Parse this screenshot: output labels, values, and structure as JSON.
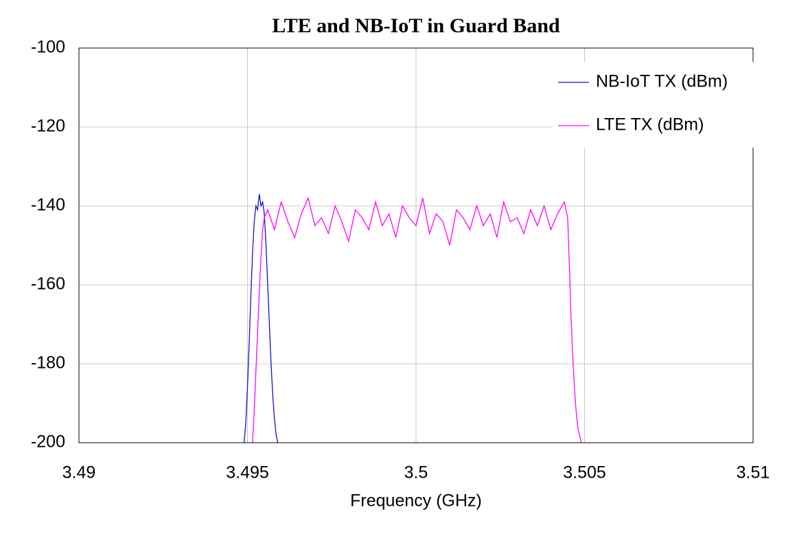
{
  "chart_data": {
    "type": "line",
    "title": "LTE and NB-IoT in Guard Band",
    "x_label": "Frequency (GHz)",
    "xlim": [
      3.49,
      3.51
    ],
    "xticks": [
      3.49,
      3.495,
      3.5,
      3.505,
      3.51
    ],
    "ylim": [
      -200,
      -100
    ],
    "yticks": [
      -100,
      -120,
      -140,
      -160,
      -180,
      -200
    ],
    "grid": true,
    "legend": "upper right",
    "series": [
      {
        "name": "NB-IoT TX (dBm)",
        "color": "#1010d0",
        "x": [
          3.4949,
          3.49495,
          3.495,
          3.49505,
          3.4951,
          3.49515,
          3.4952,
          3.49525,
          3.4953,
          3.49535,
          3.4954,
          3.49545,
          3.4955,
          3.49555,
          3.4956,
          3.49565,
          3.4957,
          3.49575,
          3.4958,
          3.49585,
          3.4959
        ],
        "values": [
          -200,
          -195,
          -186,
          -175,
          -163,
          -152,
          -144,
          -140,
          -141,
          -137,
          -140,
          -139,
          -142,
          -150,
          -160,
          -170,
          -180,
          -188,
          -194,
          -198,
          -200
        ]
      },
      {
        "name": "LTE TX (dBm)",
        "color": "#ff00ff",
        "x": [
          3.49515,
          3.4952,
          3.49525,
          3.4953,
          3.49535,
          3.4954,
          3.49545,
          3.4955,
          3.4956,
          3.4958,
          3.496,
          3.4962,
          3.4964,
          3.4966,
          3.4968,
          3.497,
          3.4972,
          3.4974,
          3.4976,
          3.4978,
          3.498,
          3.4982,
          3.4984,
          3.4986,
          3.4988,
          3.499,
          3.4992,
          3.4994,
          3.4996,
          3.4998,
          3.5,
          3.5002,
          3.5004,
          3.5006,
          3.5008,
          3.501,
          3.5012,
          3.5014,
          3.5016,
          3.5018,
          3.502,
          3.5022,
          3.5024,
          3.5026,
          3.5028,
          3.503,
          3.5032,
          3.5034,
          3.5036,
          3.5038,
          3.504,
          3.5042,
          3.5044,
          3.5045,
          3.50455,
          3.5046,
          3.50465,
          3.5047,
          3.50475,
          3.5048,
          3.50485,
          3.5049
        ],
        "values": [
          -200,
          -192,
          -182,
          -172,
          -162,
          -153,
          -146,
          -143,
          -141,
          -146,
          -139,
          -144,
          -148,
          -142,
          -138,
          -145,
          -143,
          -147,
          -140,
          -144,
          -149,
          -141,
          -143,
          -146,
          -139,
          -145,
          -142,
          -148,
          -140,
          -143,
          -145,
          -138,
          -147,
          -142,
          -144,
          -150,
          -141,
          -143,
          -146,
          -140,
          -145,
          -142,
          -148,
          -139,
          -144,
          -143,
          -147,
          -141,
          -145,
          -140,
          -146,
          -142,
          -139,
          -143,
          -155,
          -168,
          -178,
          -186,
          -192,
          -196,
          -198,
          -200
        ]
      }
    ]
  }
}
